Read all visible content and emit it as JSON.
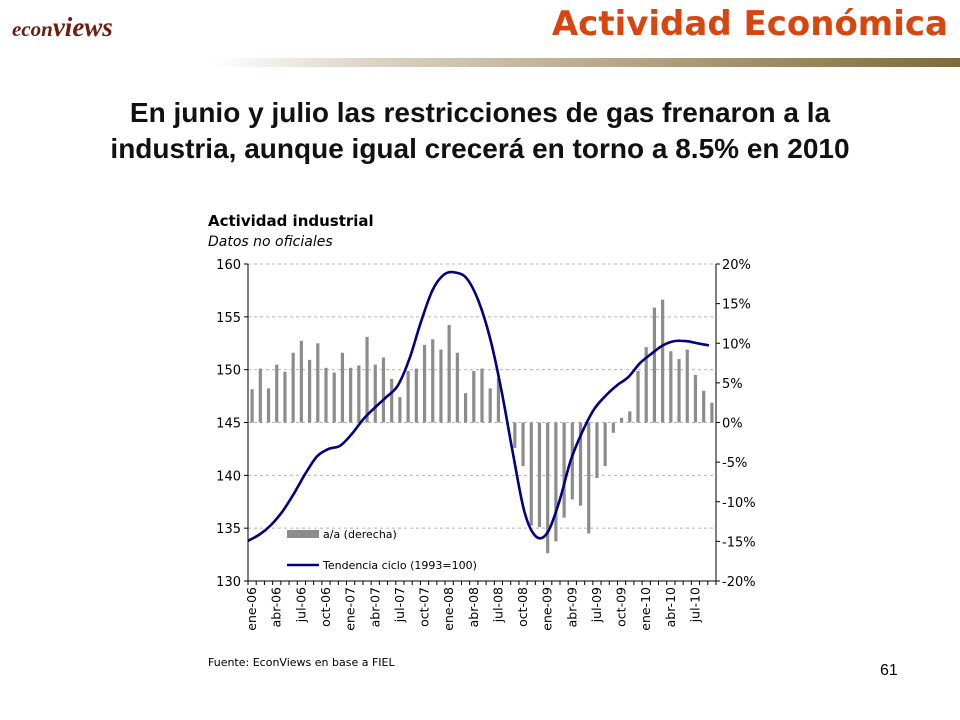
{
  "header": {
    "logo_econ": "econ",
    "logo_views": "views",
    "title": "Actividad Económica"
  },
  "headline": {
    "line1": "En junio y julio las restricciones de gas frenaron a la",
    "line2": "industria, aunque igual crecerá en torno a 8.5% en 2010"
  },
  "page_number": "61",
  "colors": {
    "title": "#d8460f",
    "logo": "#6b1e0e",
    "bars": "#8c8c8c",
    "line": "#000080"
  },
  "chart_data": {
    "type": "bar+line",
    "title": "Actividad industrial",
    "subtitle": "Datos no oficiales",
    "source": "Fuente: EconViews en base a FIEL",
    "x_tick_labels": [
      "ene-06",
      "abr-06",
      "jul-06",
      "oct-06",
      "ene-07",
      "abr-07",
      "jul-07",
      "oct-07",
      "ene-08",
      "abr-08",
      "jul-08",
      "oct-08",
      "ene-09",
      "abr-09",
      "jul-09",
      "oct-09",
      "ene-10",
      "abr-10",
      "jul-10"
    ],
    "y_left": {
      "min": 130,
      "max": 160,
      "ticks": [
        "130",
        "135",
        "140",
        "145",
        "150",
        "155",
        "160"
      ]
    },
    "y_right": {
      "min": -20,
      "max": 20,
      "ticks": [
        "-20%",
        "-15%",
        "-10%",
        "-5%",
        "0%",
        "5%",
        "10%",
        "15%",
        "20%"
      ]
    },
    "grid": true,
    "legend_position": "bottom-left",
    "series": [
      {
        "name": "a/a (derecha)",
        "type": "bar",
        "axis": "right",
        "values": [
          4.2,
          6.8,
          4.3,
          7.3,
          6.4,
          8.8,
          10.3,
          7.9,
          10.0,
          6.9,
          6.3,
          8.8,
          6.9,
          7.2,
          10.8,
          7.3,
          8.2,
          5.5,
          3.2,
          6.5,
          6.8,
          9.8,
          10.5,
          9.2,
          12.3,
          8.8,
          3.7,
          6.5,
          6.8,
          4.3,
          5.6,
          0.0,
          -3.2,
          -5.5,
          -13.0,
          -13.2,
          -16.5,
          -15.0,
          -12.0,
          -9.7,
          -10.5,
          -14.0,
          -7.0,
          -5.5,
          -1.3,
          0.6,
          1.4,
          6.5,
          9.5,
          14.5,
          15.5,
          9.0,
          8.0,
          9.2,
          6.0,
          4.0,
          2.5
        ]
      },
      {
        "name": "Tendencia ciclo (1993=100)",
        "type": "line",
        "axis": "left",
        "values": [
          133.8,
          134.4,
          135.3,
          136.6,
          138.3,
          140.2,
          141.8,
          142.5,
          142.8,
          143.9,
          145.3,
          146.4,
          147.4,
          148.5,
          151.0,
          154.5,
          157.5,
          159.0,
          159.2,
          158.6,
          156.5,
          153.0,
          148.0,
          142.0,
          136.5,
          134.2,
          134.6,
          137.5,
          141.4,
          144.1,
          146.2,
          147.5,
          148.5,
          149.3,
          150.6,
          151.5,
          152.3,
          152.7,
          152.7,
          152.5,
          152.3
        ]
      }
    ]
  }
}
